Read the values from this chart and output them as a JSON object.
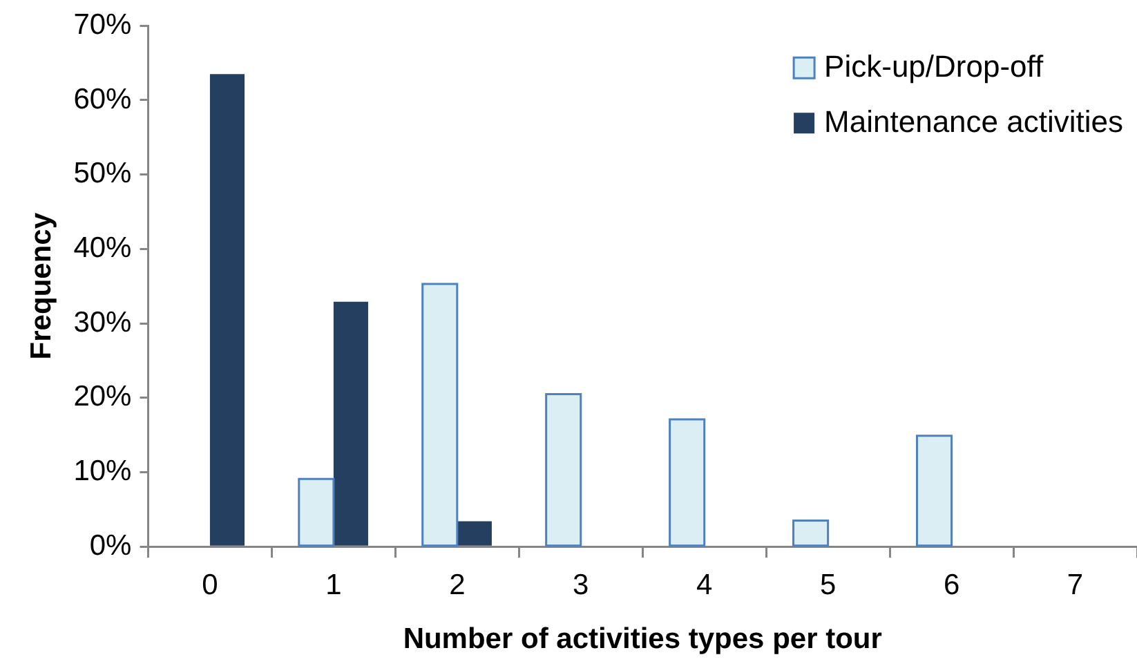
{
  "chart_data": {
    "type": "bar",
    "xlabel": "Number of activities types per tour",
    "ylabel": "Frequency",
    "categories": [
      "0",
      "1",
      "2",
      "3",
      "4",
      "5",
      "6",
      "7"
    ],
    "series": [
      {
        "name": "Pick-up/Drop-off",
        "color": "#daeef3",
        "values": [
          0,
          9.1,
          35.3,
          20.5,
          17.1,
          3.5,
          14.9,
          0
        ]
      },
      {
        "name": "Maintenance activities",
        "color": "#243f60",
        "values": [
          63.5,
          32.9,
          3.4,
          0,
          0,
          0,
          0,
          0
        ]
      }
    ],
    "ylim": [
      0,
      70
    ],
    "yticks": [
      {
        "value": 0,
        "label": "0%"
      },
      {
        "value": 10,
        "label": "10%"
      },
      {
        "value": 20,
        "label": "20%"
      },
      {
        "value": 30,
        "label": "30%"
      },
      {
        "value": 40,
        "label": "40%"
      },
      {
        "value": 50,
        "label": "50%"
      },
      {
        "value": 60,
        "label": "60%"
      },
      {
        "value": 70,
        "label": "70%"
      }
    ],
    "grid": false,
    "legend": "top right"
  }
}
